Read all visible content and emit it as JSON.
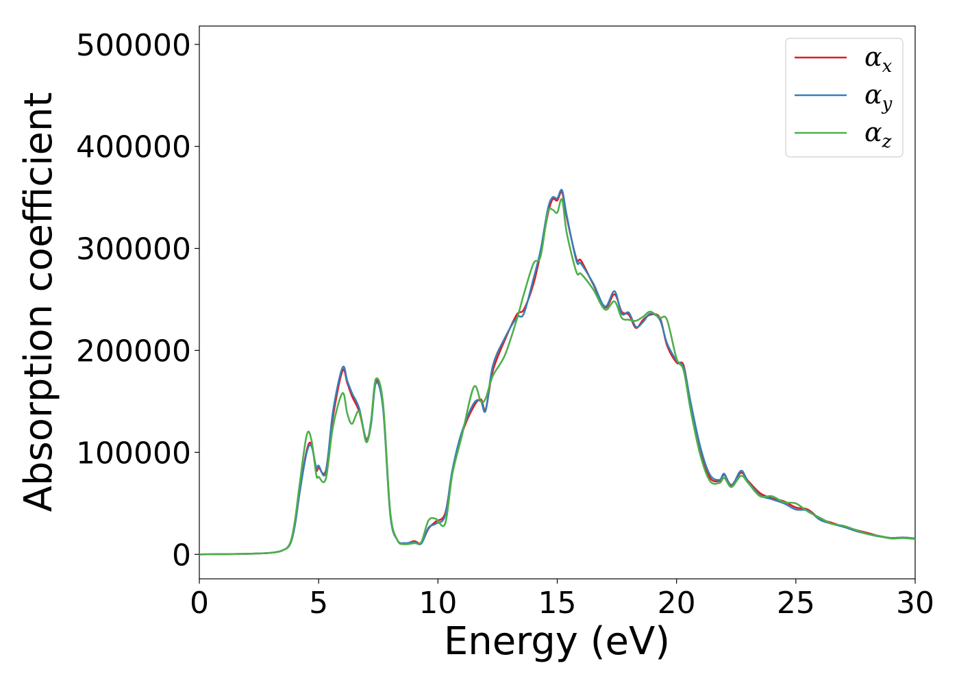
{
  "chart_data": {
    "type": "line",
    "title": "",
    "xlabel": "Energy (eV)",
    "ylabel": "Absorption coefficient",
    "xlim": [
      0,
      30
    ],
    "ylim": [
      -24000,
      518000
    ],
    "xticks": [
      0,
      5,
      10,
      15,
      20,
      25,
      30
    ],
    "xtick_labels": [
      "0",
      "5",
      "10",
      "15",
      "20",
      "25",
      "30"
    ],
    "yticks": [
      0,
      100000,
      200000,
      300000,
      400000,
      500000
    ],
    "ytick_labels": [
      "0",
      "100000",
      "200000",
      "300000",
      "400000",
      "500000"
    ],
    "grid": false,
    "legend_position": "top-right",
    "series": [
      {
        "name": "α",
        "subscript": "x",
        "color": "#e41a1c",
        "x": [
          0,
          2,
          3,
          3.5,
          3.8,
          4.0,
          4.2,
          4.5,
          4.7,
          4.9,
          5.0,
          5.3,
          5.6,
          6.0,
          6.2,
          6.4,
          6.7,
          7.0,
          7.2,
          7.4,
          7.7,
          8.0,
          8.3,
          8.6,
          9.0,
          9.3,
          9.6,
          9.9,
          10.3,
          10.6,
          11.0,
          11.5,
          11.8,
          12.0,
          12.3,
          12.8,
          13.3,
          13.6,
          14.0,
          14.3,
          14.6,
          14.8,
          15.0,
          15.2,
          15.4,
          15.8,
          16.0,
          16.5,
          17.0,
          17.4,
          17.7,
          18.0,
          18.3,
          18.6,
          18.9,
          19.3,
          19.6,
          20.0,
          20.3,
          20.6,
          21.0,
          21.4,
          21.8,
          22.0,
          22.3,
          22.7,
          23.0,
          23.5,
          24.0,
          24.5,
          25.0,
          25.5,
          26.0,
          26.5,
          27.0,
          27.5,
          28.0,
          28.5,
          29.0,
          29.5,
          30.0
        ],
        "y": [
          0,
          500,
          1500,
          4000,
          10000,
          28000,
          60000,
          102000,
          108000,
          83000,
          85000,
          82000,
          135000,
          180000,
          168000,
          155000,
          140000,
          113000,
          130000,
          170000,
          145000,
          40000,
          14000,
          10000,
          13000,
          11000,
          25000,
          32000,
          40000,
          80000,
          118000,
          145000,
          152000,
          142000,
          180000,
          210000,
          235000,
          240000,
          265000,
          295000,
          333000,
          348000,
          347000,
          355000,
          330000,
          290000,
          288000,
          265000,
          242000,
          255000,
          238000,
          235000,
          222000,
          230000,
          235000,
          232000,
          205000,
          188000,
          185000,
          145000,
          100000,
          75000,
          72000,
          78000,
          68000,
          80000,
          72000,
          60000,
          55000,
          52000,
          46000,
          44000,
          35000,
          31000,
          27000,
          24000,
          21000,
          18000,
          16000,
          16500,
          15500
        ]
      },
      {
        "name": "α",
        "subscript": "y",
        "color": "#377eb8",
        "x": [
          0,
          2,
          3,
          3.5,
          3.8,
          4.0,
          4.2,
          4.5,
          4.7,
          4.9,
          5.0,
          5.3,
          5.6,
          6.0,
          6.2,
          6.4,
          6.7,
          7.0,
          7.2,
          7.4,
          7.7,
          8.0,
          8.3,
          8.6,
          9.0,
          9.3,
          9.6,
          9.9,
          10.3,
          10.6,
          11.0,
          11.5,
          11.8,
          12.0,
          12.3,
          12.8,
          13.3,
          13.6,
          14.0,
          14.3,
          14.6,
          14.8,
          15.0,
          15.2,
          15.4,
          15.8,
          16.0,
          16.5,
          17.0,
          17.4,
          17.7,
          18.0,
          18.3,
          18.6,
          18.9,
          19.3,
          19.6,
          20.0,
          20.3,
          20.6,
          21.0,
          21.4,
          21.8,
          22.0,
          22.3,
          22.7,
          23.0,
          23.5,
          24.0,
          24.5,
          25.0,
          25.5,
          26.0,
          26.5,
          27.0,
          27.5,
          28.0,
          28.5,
          29.0,
          29.5,
          30.0
        ],
        "y": [
          0,
          500,
          1500,
          4000,
          10000,
          28000,
          60000,
          100000,
          106000,
          85000,
          87000,
          80000,
          140000,
          183000,
          170000,
          158000,
          143000,
          112000,
          128000,
          168000,
          143000,
          39000,
          14000,
          11000,
          12000,
          10500,
          26000,
          30000,
          38000,
          82000,
          120000,
          148000,
          150000,
          141000,
          185000,
          212000,
          232000,
          236000,
          270000,
          298000,
          338000,
          350000,
          349000,
          357000,
          332000,
          288000,
          285000,
          266000,
          243000,
          258000,
          236000,
          237000,
          223000,
          228000,
          236000,
          230000,
          207000,
          190000,
          183000,
          148000,
          105000,
          78000,
          73000,
          79000,
          67000,
          82000,
          71000,
          58000,
          54000,
          50000,
          44000,
          43000,
          34000,
          30000,
          27000,
          23000,
          20000,
          17500,
          16000,
          16500,
          15500
        ]
      },
      {
        "name": "α",
        "subscript": "z",
        "color": "#4daf4a",
        "x": [
          0,
          2,
          3,
          3.5,
          3.8,
          4.0,
          4.2,
          4.5,
          4.7,
          4.9,
          5.0,
          5.3,
          5.6,
          6.0,
          6.2,
          6.4,
          6.7,
          7.0,
          7.2,
          7.4,
          7.7,
          8.0,
          8.3,
          8.6,
          9.0,
          9.3,
          9.6,
          9.9,
          10.3,
          10.6,
          11.0,
          11.5,
          11.8,
          12.0,
          12.3,
          12.8,
          13.3,
          13.6,
          14.0,
          14.3,
          14.6,
          14.8,
          15.0,
          15.2,
          15.4,
          15.8,
          16.0,
          16.5,
          17.0,
          17.4,
          17.7,
          18.0,
          18.3,
          18.6,
          18.9,
          19.3,
          19.6,
          20.0,
          20.3,
          20.6,
          21.0,
          21.4,
          21.8,
          22.0,
          22.3,
          22.7,
          23.0,
          23.5,
          24.0,
          24.5,
          25.0,
          25.5,
          26.0,
          26.5,
          27.0,
          27.5,
          28.0,
          28.5,
          29.0,
          29.5,
          30.0
        ],
        "y": [
          0,
          500,
          1500,
          4000,
          11000,
          32000,
          68000,
          117000,
          112000,
          78000,
          76000,
          74000,
          125000,
          158000,
          138000,
          128000,
          140000,
          110000,
          132000,
          172000,
          148000,
          42000,
          14000,
          10000,
          11000,
          12000,
          33000,
          35000,
          30000,
          78000,
          116000,
          164000,
          150000,
          153000,
          175000,
          195000,
          230000,
          255000,
          285000,
          292000,
          335000,
          338000,
          335000,
          348000,
          315000,
          277000,
          275000,
          260000,
          240000,
          248000,
          232000,
          230000,
          229000,
          233000,
          238000,
          232000,
          230000,
          192000,
          180000,
          140000,
          97000,
          72000,
          70000,
          75000,
          66000,
          77000,
          70000,
          57000,
          57000,
          51000,
          50000,
          42000,
          36000,
          30000,
          28000,
          24000,
          20000,
          18000,
          15500,
          16000,
          15000
        ]
      }
    ]
  }
}
